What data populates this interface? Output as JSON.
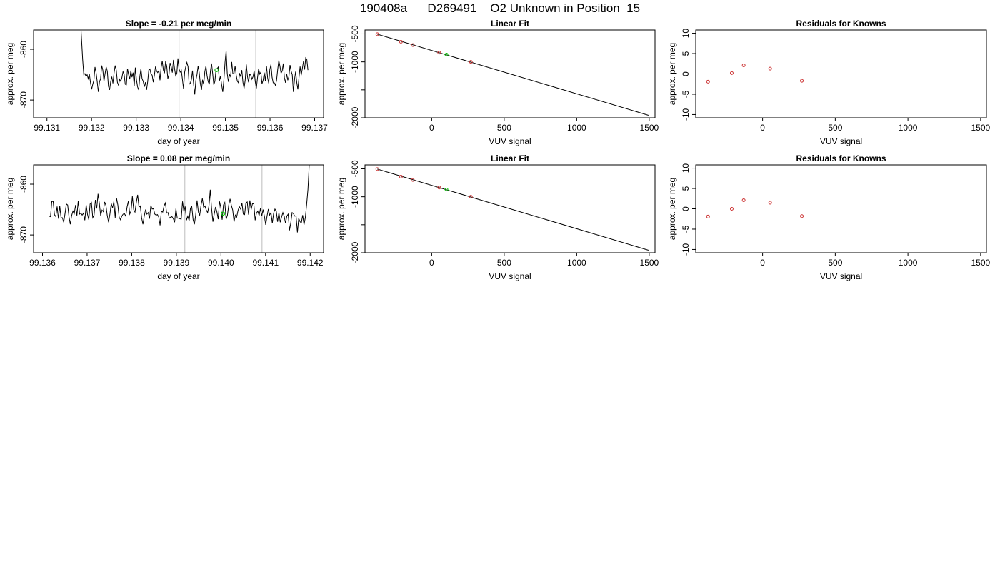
{
  "header": {
    "title": "190408a      D269491    O2 Unknown in Position  15"
  },
  "chart_data": [
    {
      "type": "line",
      "title": "Slope =  -0.21  per meg/min",
      "xlabel": "day of year",
      "ylabel": "approx. per meg",
      "xlim": [
        99.1307,
        99.1372
      ],
      "ylim": [
        -873.5,
        -856.2
      ],
      "xticks": [
        99.131,
        99.132,
        99.133,
        99.134,
        99.135,
        99.136,
        99.137
      ],
      "xtick_labels": [
        "99.131",
        "99.132",
        "99.133",
        "99.134",
        "99.135",
        "99.136",
        "99.137"
      ],
      "yticks": [
        -870,
        -860
      ],
      "ytick_labels": [
        "-870",
        "-860"
      ],
      "vlines": [
        99.13396,
        99.13568
      ],
      "series_color": "#000000",
      "marker_color": "#00cc00",
      "marker": {
        "x": 99.1348,
        "y": -864.1
      },
      "trace": {
        "x_start": 99.13175,
        "x_end": 99.13685,
        "y": [
          -854,
          -858,
          -862,
          -865,
          -864.8,
          -865.3,
          -865.0,
          -865.8,
          -864.9,
          -866.6,
          -867.9,
          -866.9,
          -866.1,
          -863.5,
          -864.6,
          -866.4,
          -868.4,
          -866.4,
          -865.8,
          -863.2,
          -864.1,
          -866.3,
          -864.8,
          -863.5,
          -864.3,
          -867.3,
          -868.0,
          -866.4,
          -865.4,
          -866.7,
          -864.7,
          -863.2,
          -864.1,
          -866.5,
          -867.1,
          -865.9,
          -866.3,
          -865.6,
          -864.4,
          -864.9,
          -866.9,
          -867.0,
          -863.8,
          -865.0,
          -865.9,
          -864.2,
          -865.5,
          -864.6,
          -867.3,
          -863.6,
          -866.0,
          -867.4,
          -868.0,
          -865.4,
          -863.8,
          -865.8,
          -866.3,
          -867.4,
          -866.5,
          -868.0,
          -866.4,
          -864.1,
          -863.9,
          -864.9,
          -865.1,
          -866.5,
          -865.1,
          -863.4,
          -864.3,
          -864.6,
          -864.2,
          -866.1,
          -863.6,
          -862.3,
          -864.1,
          -864.7,
          -862.4,
          -863.3,
          -865.8,
          -865.0,
          -862.7,
          -863.4,
          -864.6,
          -862.1,
          -863.8,
          -865.2,
          -864.8,
          -861.8,
          -863.9,
          -864.5,
          -864.1,
          -865.9,
          -867.8,
          -864.5,
          -863.4,
          -862.6,
          -863.4,
          -866.9,
          -866.7,
          -866.0,
          -864.2,
          -866.9,
          -868.9,
          -866.1,
          -865.0,
          -863.3,
          -864.6,
          -866.8,
          -868.0,
          -866.0,
          -866.9,
          -864.4,
          -863.3,
          -865.2,
          -866.4,
          -866.9,
          -864.3,
          -862.8,
          -864.8,
          -867.0,
          -866.3,
          -863.9,
          -863.8,
          -863.5,
          -866.2,
          -865.3,
          -867.0,
          -868.4,
          -866.0,
          -862.6,
          -860.3,
          -864.8,
          -866.4,
          -865.0,
          -865.4,
          -862.5,
          -864.8,
          -864.8,
          -863.3,
          -865.1,
          -866.3,
          -866.6,
          -864.7,
          -865.4,
          -864.1,
          -866.5,
          -867.7,
          -866.1,
          -863.0,
          -865.3,
          -866.5,
          -864.9,
          -865.1,
          -865.9,
          -865.4,
          -864.2,
          -866.4,
          -867.7,
          -865.6,
          -863.8,
          -864.9,
          -864.5,
          -866.8,
          -866.1,
          -864.6,
          -866.2,
          -863.3,
          -865.6,
          -866.7,
          -864.0,
          -863.0,
          -865.5,
          -866.6,
          -866.6,
          -867.1,
          -866.1,
          -864.0,
          -862.2,
          -863.3,
          -864.7,
          -864.3,
          -862.8,
          -865.6,
          -866.6,
          -864.8,
          -866.1,
          -865.4,
          -863.1,
          -864.3,
          -865.0,
          -868.4,
          -866.0,
          -864.4,
          -866.5,
          -867.9,
          -865.6,
          -863.4,
          -865.1,
          -863.8,
          -862.4,
          -864.0,
          -861.7,
          -862.0,
          -864.1
        ]
      }
    },
    {
      "type": "scatter",
      "title": "Linear Fit",
      "xlabel": "VUV signal",
      "ylabel": "approx. per meg",
      "xlim": [
        -460,
        1540
      ],
      "ylim": [
        -2000,
        -430
      ],
      "xticks": [
        0,
        500,
        1000,
        1500
      ],
      "xtick_labels": [
        "0",
        "500",
        "1000",
        "1500"
      ],
      "yticks": [
        -2000,
        -1500,
        -1000,
        -500
      ],
      "ytick_labels": [
        "-2000",
        "",
        "-1000",
        "-500"
      ],
      "fit_line": {
        "x": [
          -375,
          1495
        ],
        "y": [
          -505,
          -1955
        ]
      },
      "known_color": "#cc3333",
      "unknown_color": "#00cc00",
      "knowns": {
        "x": [
          -375,
          -212,
          -130,
          52,
          270
        ],
        "y": [
          -505,
          -640,
          -700,
          -835,
          -1000
        ]
      },
      "unknown": {
        "x": 102,
        "y": -870
      }
    },
    {
      "type": "scatter",
      "title": "Residuals for Knowns",
      "xlabel": "VUV signal",
      "ylabel": "approx. per meg",
      "xlim": [
        -460,
        1540
      ],
      "ylim": [
        -10.8,
        10.8
      ],
      "xticks": [
        0,
        500,
        1000,
        1500
      ],
      "xtick_labels": [
        "0",
        "500",
        "1000",
        "1500"
      ],
      "yticks": [
        -10,
        -5,
        0,
        5,
        10
      ],
      "ytick_labels": [
        "-10",
        "-5",
        "0",
        "5",
        "10"
      ],
      "point_color": "#cc3333",
      "points": {
        "x": [
          -375,
          -212,
          -130,
          52,
          270
        ],
        "y": [
          -1.9,
          0.2,
          2.1,
          1.3,
          -1.7
        ]
      }
    },
    {
      "type": "line",
      "title": "Slope =  0.08  per meg/min",
      "xlabel": "day of year",
      "ylabel": "approx. per meg",
      "xlim": [
        99.1358,
        99.1423
      ],
      "ylim": [
        -873.5,
        -856.2
      ],
      "xticks": [
        99.136,
        99.137,
        99.138,
        99.139,
        99.14,
        99.141,
        99.142
      ],
      "xtick_labels": [
        "99.136",
        "99.137",
        "99.138",
        "99.139",
        "99.140",
        "99.141",
        "99.142"
      ],
      "yticks": [
        -870,
        -860
      ],
      "ytick_labels": [
        "-870",
        "-860"
      ],
      "vlines": [
        99.13919,
        99.14092
      ],
      "series_color": "#000000",
      "marker_color": "#00cc00",
      "marker": {
        "x": 99.14005,
        "y": -865.8
      },
      "trace": {
        "x_start": 99.13615,
        "x_end": 99.14198,
        "y": [
          -866.3,
          -866.4,
          -863.4,
          -863.4,
          -866.0,
          -866.4,
          -864.4,
          -866.8,
          -864.3,
          -866.6,
          -866.6,
          -867.5,
          -865.8,
          -863.9,
          -864.1,
          -866.4,
          -867.9,
          -866.2,
          -865.3,
          -865.8,
          -864.1,
          -866.2,
          -863.3,
          -865.9,
          -865.7,
          -866.1,
          -865.7,
          -867.1,
          -864.1,
          -865.9,
          -867.0,
          -863.9,
          -863.6,
          -866.6,
          -866.1,
          -863.1,
          -864.8,
          -861.9,
          -863.8,
          -866.2,
          -865.1,
          -865.4,
          -863.5,
          -864.2,
          -866.2,
          -867.5,
          -865.9,
          -863.8,
          -864.7,
          -863.4,
          -866.6,
          -862.7,
          -864.1,
          -866.5,
          -867.0,
          -866.3,
          -865.9,
          -865.8,
          -866.3,
          -864.5,
          -863.3,
          -865.9,
          -865.3,
          -862.4,
          -865.0,
          -865.5,
          -863.6,
          -862.1,
          -864.5,
          -864.3,
          -866.6,
          -867.9,
          -866.3,
          -865.0,
          -865.9,
          -865.6,
          -866.8,
          -864.2,
          -864.9,
          -864.8,
          -865.9,
          -866.1,
          -866.0,
          -866.5,
          -868.1,
          -865.3,
          -865.5,
          -864.3,
          -863.7,
          -865.7,
          -865.6,
          -866.7,
          -866.5,
          -866.4,
          -866.8,
          -867.5,
          -864.8,
          -866.7,
          -866.7,
          -866.8,
          -866.9,
          -863.4,
          -865.4,
          -864.4,
          -867.1,
          -866.3,
          -867.2,
          -864.7,
          -864.4,
          -867.0,
          -867.9,
          -866.0,
          -863.2,
          -865.5,
          -866.1,
          -864.2,
          -862.8,
          -864.6,
          -864.3,
          -865.1,
          -865.6,
          -864.3,
          -861.1,
          -864.8,
          -867.4,
          -865.9,
          -864.5,
          -865.4,
          -866.9,
          -863.4,
          -864.6,
          -867.0,
          -864.1,
          -863.6,
          -866.9,
          -866.1,
          -864.1,
          -862.9,
          -864.2,
          -865.1,
          -867.4,
          -866.1,
          -866.5,
          -865.2,
          -864.4,
          -864.9,
          -863.7,
          -865.9,
          -866.0,
          -863.7,
          -863.5,
          -866.0,
          -863.2,
          -865.0,
          -863.8,
          -863.9,
          -867.1,
          -865.7,
          -865.3,
          -866.2,
          -864.8,
          -866.3,
          -865.0,
          -866.3,
          -868.0,
          -866.3,
          -864.9,
          -866.1,
          -865.6,
          -867.7,
          -865.7,
          -864.9,
          -865.3,
          -867.4,
          -865.6,
          -867.5,
          -866.5,
          -865.6,
          -866.3,
          -867.7,
          -866.3,
          -865.9,
          -869.1,
          -867.6,
          -865.6,
          -865.8,
          -866.3,
          -866.3,
          -869.5,
          -866.7,
          -867.4,
          -867.6,
          -866.1,
          -868.0,
          -866.6,
          -864.0,
          -861.0,
          -856.0
        ]
      }
    },
    {
      "type": "scatter",
      "title": "Linear Fit",
      "xlabel": "VUV signal",
      "ylabel": "approx. per meg",
      "xlim": [
        -460,
        1540
      ],
      "ylim": [
        -2000,
        -430
      ],
      "xticks": [
        0,
        500,
        1000,
        1500
      ],
      "xtick_labels": [
        "0",
        "500",
        "1000",
        "1500"
      ],
      "yticks": [
        -2000,
        -1500,
        -1000,
        -500
      ],
      "ytick_labels": [
        "-2000",
        "",
        "-1000",
        "-500"
      ],
      "fit_line": {
        "x": [
          -375,
          1495
        ],
        "y": [
          -505,
          -1955
        ]
      },
      "known_color": "#cc3333",
      "unknown_color": "#00cc00",
      "knowns": {
        "x": [
          -375,
          -212,
          -130,
          52,
          270
        ],
        "y": [
          -505,
          -640,
          -700,
          -835,
          -1000
        ]
      },
      "unknown": {
        "x": 102,
        "y": -870
      }
    },
    {
      "type": "scatter",
      "title": "Residuals for Knowns",
      "xlabel": "VUV signal",
      "ylabel": "approx. per meg",
      "xlim": [
        -460,
        1540
      ],
      "ylim": [
        -10.8,
        10.8
      ],
      "xticks": [
        0,
        500,
        1000,
        1500
      ],
      "xtick_labels": [
        "0",
        "500",
        "1000",
        "1500"
      ],
      "yticks": [
        -10,
        -5,
        0,
        5,
        10
      ],
      "ytick_labels": [
        "-10",
        "-5",
        "0",
        "5",
        "10"
      ],
      "point_color": "#cc3333",
      "points": {
        "x": [
          -375,
          -212,
          -130,
          52,
          270
        ],
        "y": [
          -1.9,
          0.0,
          2.1,
          1.5,
          -1.8
        ]
      }
    }
  ]
}
